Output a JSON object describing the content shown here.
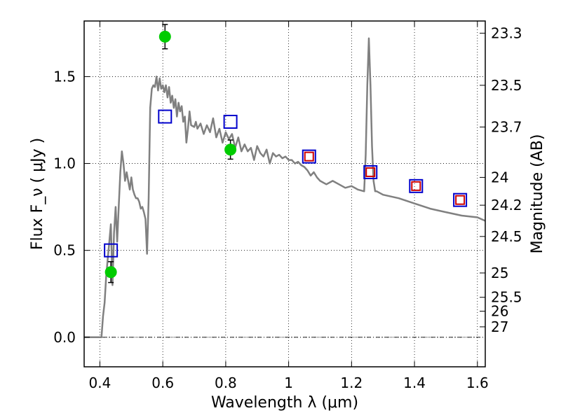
{
  "chart_data": {
    "type": "scatter",
    "title": "",
    "xlabel": "Wavelength  λ (μm)",
    "ylabel": "Flux  F_ν  ( μJy )",
    "ylabel_right": "Magnitude (AB)",
    "xlim": [
      0.35,
      1.625
    ],
    "ylim": [
      -0.17,
      1.82
    ],
    "grid": true,
    "xticks": [
      0.4,
      0.6,
      0.8,
      1.0,
      1.2,
      1.4,
      1.6
    ],
    "xtick_labels": [
      "0.4",
      "0.6",
      "0.8",
      "1",
      "1.2",
      "1.4",
      "1.6"
    ],
    "yticks": [
      0.0,
      0.5,
      1.0,
      1.5
    ],
    "ytick_labels": [
      "0.0",
      "0.5",
      "1.0",
      "1.5"
    ],
    "right_ticks": [
      {
        "label": "23.3",
        "flux": 1.75
      },
      {
        "label": "23.5",
        "flux": 1.45
      },
      {
        "label": "23.7",
        "flux": 1.21
      },
      {
        "label": "24",
        "flux": 0.92
      },
      {
        "label": "24.2",
        "flux": 0.76
      },
      {
        "label": "24.5",
        "flux": 0.58
      },
      {
        "label": "25",
        "flux": 0.37
      },
      {
        "label": "25.5",
        "flux": 0.23
      },
      {
        "label": "26",
        "flux": 0.15
      },
      {
        "label": "27",
        "flux": 0.06
      }
    ],
    "series": [
      {
        "kind": "line",
        "color": "#808080",
        "x": [
          0.35,
          0.405,
          0.41,
          0.415,
          0.42,
          0.425,
          0.43,
          0.435,
          0.44,
          0.445,
          0.45,
          0.455,
          0.46,
          0.465,
          0.47,
          0.475,
          0.48,
          0.485,
          0.49,
          0.495,
          0.5,
          0.505,
          0.51,
          0.515,
          0.52,
          0.525,
          0.53,
          0.535,
          0.54,
          0.545,
          0.55,
          0.555,
          0.56,
          0.565,
          0.57,
          0.575,
          0.58,
          0.585,
          0.59,
          0.595,
          0.6,
          0.605,
          0.61,
          0.615,
          0.62,
          0.625,
          0.63,
          0.635,
          0.64,
          0.645,
          0.65,
          0.655,
          0.66,
          0.665,
          0.67,
          0.675,
          0.68,
          0.685,
          0.69,
          0.7,
          0.705,
          0.71,
          0.72,
          0.73,
          0.74,
          0.75,
          0.76,
          0.77,
          0.78,
          0.79,
          0.8,
          0.81,
          0.82,
          0.83,
          0.84,
          0.85,
          0.86,
          0.87,
          0.88,
          0.89,
          0.9,
          0.91,
          0.92,
          0.93,
          0.94,
          0.95,
          0.96,
          0.97,
          0.98,
          0.99,
          1.0,
          1.01,
          1.02,
          1.03,
          1.04,
          1.05,
          1.06,
          1.07,
          1.08,
          1.09,
          1.1,
          1.12,
          1.14,
          1.16,
          1.18,
          1.2,
          1.22,
          1.24,
          1.245,
          1.25,
          1.255,
          1.26,
          1.265,
          1.27,
          1.275,
          1.28,
          1.3,
          1.35,
          1.4,
          1.45,
          1.5,
          1.55,
          1.6,
          1.625
        ],
        "y": [
          0.0,
          0.0,
          0.12,
          0.2,
          0.35,
          0.45,
          0.55,
          0.65,
          0.3,
          0.6,
          0.75,
          0.55,
          0.75,
          0.95,
          1.07,
          1.0,
          0.9,
          0.95,
          0.9,
          0.85,
          0.92,
          0.85,
          0.82,
          0.8,
          0.8,
          0.78,
          0.74,
          0.75,
          0.72,
          0.68,
          0.48,
          0.8,
          1.32,
          1.43,
          1.45,
          1.44,
          1.5,
          1.42,
          1.49,
          1.43,
          1.45,
          1.41,
          1.45,
          1.38,
          1.44,
          1.35,
          1.39,
          1.32,
          1.37,
          1.27,
          1.35,
          1.3,
          1.33,
          1.24,
          1.27,
          1.12,
          1.2,
          1.3,
          1.22,
          1.21,
          1.24,
          1.2,
          1.23,
          1.17,
          1.22,
          1.18,
          1.26,
          1.15,
          1.2,
          1.12,
          1.18,
          1.14,
          1.17,
          1.09,
          1.15,
          1.07,
          1.11,
          1.07,
          1.09,
          1.02,
          1.1,
          1.06,
          1.04,
          1.08,
          1.0,
          1.06,
          1.04,
          1.05,
          1.03,
          1.04,
          1.02,
          1.02,
          1.0,
          1.01,
          0.99,
          0.98,
          0.96,
          0.93,
          0.95,
          0.92,
          0.9,
          0.88,
          0.9,
          0.88,
          0.86,
          0.87,
          0.85,
          0.84,
          1.05,
          1.45,
          1.72,
          1.45,
          1.1,
          0.9,
          0.84,
          0.84,
          0.82,
          0.8,
          0.77,
          0.74,
          0.72,
          0.7,
          0.69,
          0.67
        ]
      },
      {
        "kind": "square",
        "color": "#0000cc",
        "x": [
          0.435,
          0.607,
          0.815,
          1.065,
          1.26,
          1.405,
          1.545
        ],
        "y": [
          0.5,
          1.27,
          1.24,
          1.04,
          0.95,
          0.87,
          0.79
        ]
      },
      {
        "kind": "square",
        "color": "#cc0000",
        "size": "small",
        "x": [
          1.065,
          1.26,
          1.405,
          1.545
        ],
        "y": [
          1.04,
          0.95,
          0.87,
          0.79
        ]
      },
      {
        "kind": "circle",
        "color": "#00cc00",
        "x": [
          0.435,
          0.607,
          0.815
        ],
        "y": [
          0.375,
          1.73,
          1.08
        ],
        "yerr": [
          0.06,
          0.07,
          0.055
        ]
      }
    ]
  }
}
